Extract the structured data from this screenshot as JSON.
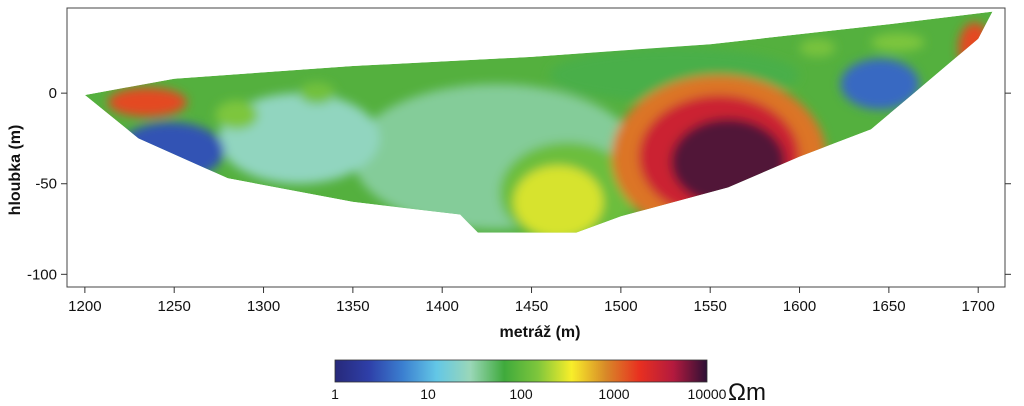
{
  "chart_data": {
    "type": "heatmap",
    "title": "",
    "xlabel": "metráž (m)",
    "ylabel": "hloubka (m)",
    "xlim": [
      1190,
      1715
    ],
    "ylim": [
      -107,
      47
    ],
    "x_ticks": [
      1200,
      1250,
      1300,
      1350,
      1400,
      1450,
      1500,
      1550,
      1600,
      1650,
      1700
    ],
    "x_tick_labels": [
      "1200",
      "1250",
      "1300",
      "1350",
      "1400",
      "1450",
      "1500",
      "1550",
      "1600",
      "1650",
      "1700"
    ],
    "y_ticks": [
      0,
      -50,
      -100
    ],
    "y_tick_labels": [
      "0",
      "-50",
      "-100"
    ],
    "grid": false,
    "profile_outline": [
      [
        1200,
        -1
      ],
      [
        1230,
        -25
      ],
      [
        1280,
        -47
      ],
      [
        1350,
        -60
      ],
      [
        1410,
        -67
      ],
      [
        1420,
        -77
      ],
      [
        1475,
        -77
      ],
      [
        1500,
        -68
      ],
      [
        1560,
        -52
      ],
      [
        1600,
        -35
      ],
      [
        1640,
        -20
      ],
      [
        1670,
        5
      ],
      [
        1700,
        30
      ],
      [
        1708,
        45
      ],
      [
        1650,
        38
      ],
      [
        1550,
        27
      ],
      [
        1450,
        20
      ],
      [
        1350,
        15
      ],
      [
        1250,
        8
      ],
      [
        1200,
        -1
      ]
    ],
    "resistivity_zones": [
      {
        "x": 1430,
        "y": -35,
        "rx": 80,
        "ry": 40,
        "rho": 35
      },
      {
        "x": 1320,
        "y": -25,
        "rx": 45,
        "ry": 25,
        "rho": 25
      },
      {
        "x": 1530,
        "y": 10,
        "rx": 70,
        "ry": 15,
        "rho": 60
      },
      {
        "x": 1470,
        "y": -55,
        "rx": 38,
        "ry": 28,
        "rho": 120
      },
      {
        "x": 1465,
        "y": -60,
        "rx": 25,
        "ry": 20,
        "rho": 280
      },
      {
        "x": 1555,
        "y": -35,
        "rx": 60,
        "ry": 45,
        "rho": 1000
      },
      {
        "x": 1555,
        "y": -35,
        "rx": 45,
        "ry": 34,
        "rho": 3000
      },
      {
        "x": 1560,
        "y": -38,
        "rx": 32,
        "ry": 24,
        "rho": 8000
      },
      {
        "x": 1248,
        "y": -32,
        "rx": 30,
        "ry": 16,
        "rho": 3
      },
      {
        "x": 1645,
        "y": 5,
        "rx": 22,
        "ry": 14,
        "rho": 4
      },
      {
        "x": 1235,
        "y": -5,
        "rx": 22,
        "ry": 8,
        "rho": 1500
      },
      {
        "x": 1698,
        "y": 25,
        "rx": 9,
        "ry": 14,
        "rho": 1500
      },
      {
        "x": 1285,
        "y": -12,
        "rx": 12,
        "ry": 8,
        "rho": 150
      },
      {
        "x": 1330,
        "y": 0,
        "rx": 10,
        "ry": 6,
        "rho": 130
      },
      {
        "x": 1610,
        "y": 25,
        "rx": 10,
        "ry": 5,
        "rho": 140
      },
      {
        "x": 1655,
        "y": 28,
        "rx": 15,
        "ry": 5,
        "rho": 150
      }
    ],
    "colorbar": {
      "scale": "log",
      "min": 1,
      "max": 10000,
      "tick_values": [
        1,
        10,
        100,
        1000,
        10000
      ],
      "tick_labels": [
        "1",
        "10",
        "100",
        "1000",
        "10000"
      ],
      "unit": "Ωm",
      "colors": [
        "#27297a",
        "#2e3fa8",
        "#3b7fd0",
        "#63c7e6",
        "#9ad7b8",
        "#3faa3c",
        "#7ec63c",
        "#f8ee2a",
        "#d88a28",
        "#e83020",
        "#b41a3e",
        "#2d1035"
      ]
    }
  }
}
